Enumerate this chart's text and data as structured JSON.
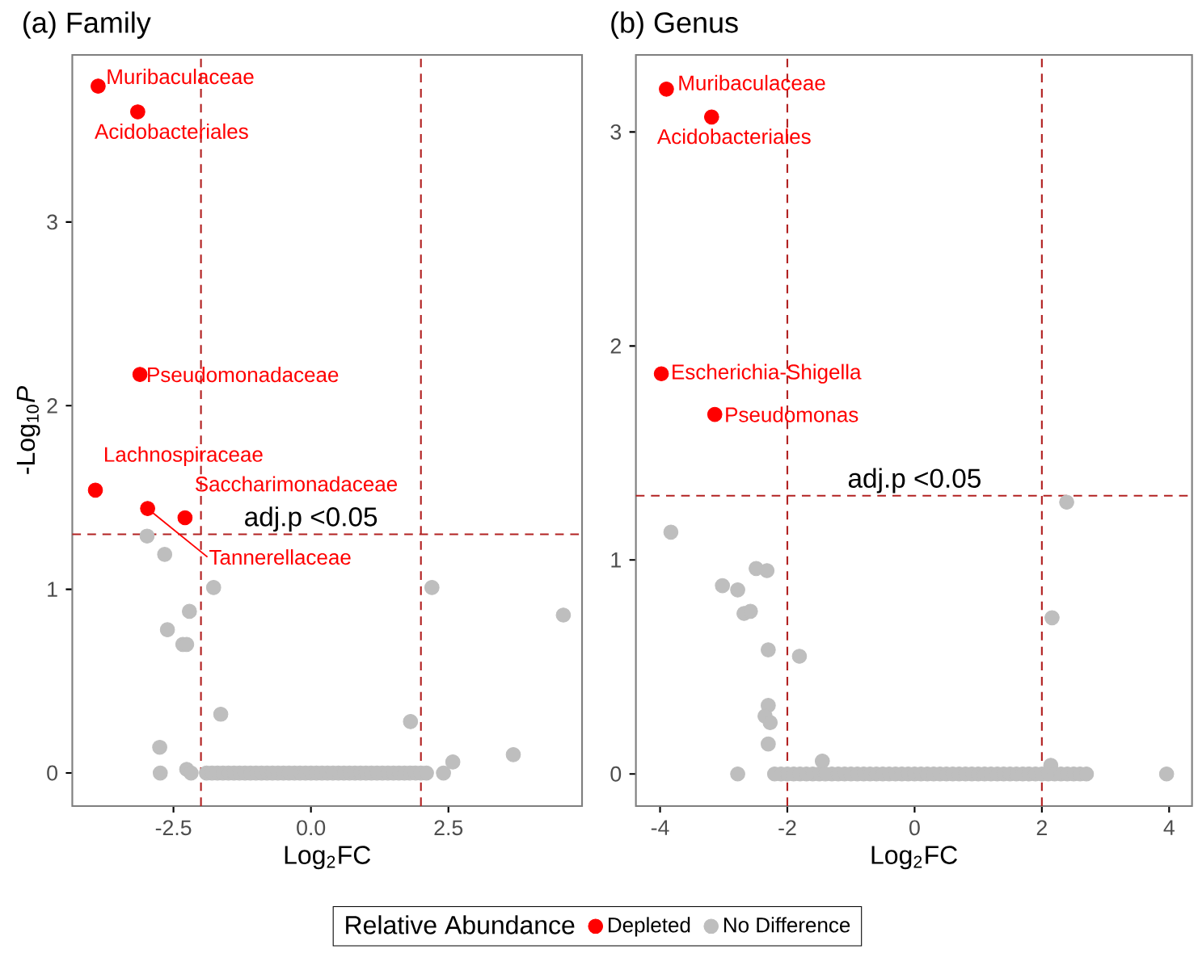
{
  "chart_data": [
    {
      "type": "scatter",
      "title": "(a) Family",
      "xlabel": "Log$_{2}$FC",
      "ylabel": "-Log$_{10}$*P*",
      "legend_title": "Relative Abundance",
      "legend": "bottom",
      "grid": false,
      "xlim": [
        -4.34,
        4.93
      ],
      "ylim": [
        -0.18,
        3.91
      ],
      "xticks": [
        -2.5,
        {
          "value": 0,
          "label": "0.0"
        },
        2.5
      ],
      "yticks": [
        0,
        1,
        2,
        3
      ],
      "series": [
        {
          "name": "Depleted",
          "color": "#ff0000",
          "x": [
            -3.87,
            -3.15,
            -3.11,
            -3.92,
            -2.97,
            -2.29
          ],
          "values": [
            3.74,
            3.6,
            2.17,
            1.54,
            1.44,
            1.39
          ]
        },
        {
          "name": "No Difference",
          "color": "#bebebe",
          "x": [
            -2.98,
            -2.66,
            -1.77,
            2.2,
            -2.21,
            4.59,
            -2.61,
            -2.33,
            -2.26,
            -1.64,
            1.81,
            -2.75,
            3.68,
            2.58,
            2.41,
            -2.74,
            -2.26,
            -2.18,
            -1.9,
            -1.8,
            -1.7,
            -1.6,
            -1.5,
            -1.4,
            -1.3,
            -1.2,
            -1.1,
            -1,
            -0.9,
            -0.8,
            -0.7,
            -0.6,
            -0.5,
            -0.4,
            -0.3,
            -0.2,
            -0.1,
            0,
            0.1,
            0.2,
            0.3,
            0.4,
            0.5,
            0.6,
            0.7,
            0.8,
            0.9,
            1,
            1.1,
            1.2,
            1.3,
            1.4,
            1.5,
            1.6,
            1.7,
            1.8,
            1.9,
            2,
            2.1
          ],
          "values": [
            1.29,
            1.19,
            1.01,
            1.01,
            0.88,
            0.86,
            0.78,
            0.7,
            0.7,
            0.32,
            0.28,
            0.14,
            0.1,
            0.06,
            0,
            0,
            0.02,
            0,
            0,
            0,
            0,
            0,
            0,
            0,
            0,
            0,
            0,
            0,
            0,
            0,
            0,
            0,
            0,
            0,
            0,
            0,
            0,
            0,
            0,
            0,
            0,
            0,
            0,
            0,
            0,
            0,
            0,
            0,
            0,
            0,
            0,
            0,
            0,
            0,
            0,
            0,
            0,
            0,
            0
          ]
        }
      ],
      "ref_lines": [
        {
          "axis": "x",
          "value": -2,
          "color": "#b22222",
          "line_style": "dashed"
        },
        {
          "axis": "x",
          "value": 2,
          "color": "#b22222",
          "line_style": "dashed"
        },
        {
          "axis": "y",
          "value": 1.3,
          "label": "adj.p <0.05",
          "color": "#b22222",
          "line_style": "dashed"
        }
      ],
      "annotations": [
        {
          "text": "Muribaculaceae",
          "x": -3.87,
          "y": 3.74
        },
        {
          "text": "Acidobacteriales",
          "x": -3.15,
          "y": 3.6
        },
        {
          "text": "Pseudomonadaceae",
          "x": -3.11,
          "y": 2.17
        },
        {
          "text": "Lachnospiraceae",
          "x": -3.92,
          "y": 1.54
        },
        {
          "text": "Tannerellaceae",
          "x": -2.97,
          "y": 1.44
        },
        {
          "text": "Saccharimonadaceae",
          "x": -2.29,
          "y": 1.39
        }
      ]
    },
    {
      "type": "scatter",
      "title": "(b) Genus",
      "xlabel": "Log$_{2}$FC",
      "grid": false,
      "xlim": [
        -4.38,
        4.36
      ],
      "ylim": [
        -0.15,
        3.36
      ],
      "xticks": [
        -4,
        -2,
        0,
        2,
        4
      ],
      "yticks": [
        0,
        1,
        2,
        3
      ],
      "series": [
        {
          "color": "#ff0000",
          "x": [
            -3.9,
            -3.19,
            -3.98,
            -3.14
          ],
          "values": [
            3.2,
            3.07,
            1.87,
            1.68
          ]
        },
        {
          "color": "#bebebe",
          "x": [
            -3.83,
            2.39,
            -2.49,
            -2.32,
            -3.02,
            -2.78,
            -2.68,
            -2.58,
            2.16,
            -2.3,
            -1.81,
            -2.3,
            -2.35,
            -2.27,
            -2.3,
            -1.45,
            2.14,
            -2.78,
            3.96,
            -2.2,
            -2.1,
            -2,
            -1.9,
            -1.8,
            -1.7,
            -1.6,
            -1.5,
            -1.4,
            -1.3,
            -1.2,
            -1.1,
            -1,
            -0.9,
            -0.8,
            -0.7,
            -0.6,
            -0.5,
            -0.4,
            -0.3,
            -0.2,
            -0.1,
            0,
            0.1,
            0.2,
            0.3,
            0.4,
            0.5,
            0.6,
            0.7,
            0.8,
            0.9,
            1,
            1.1,
            1.2,
            1.3,
            1.4,
            1.5,
            1.6,
            1.7,
            1.8,
            1.9,
            2,
            2.1,
            2.2,
            2.3,
            2.4,
            2.5,
            2.6,
            2.7
          ],
          "values": [
            1.13,
            1.27,
            0.96,
            0.95,
            0.88,
            0.86,
            0.75,
            0.76,
            0.73,
            0.58,
            0.55,
            0.32,
            0.27,
            0.24,
            0.14,
            0.06,
            0.04,
            0,
            0,
            0,
            0,
            0,
            0,
            0,
            0,
            0,
            0,
            0,
            0,
            0,
            0,
            0,
            0,
            0,
            0,
            0,
            0,
            0,
            0,
            0,
            0,
            0,
            0,
            0,
            0,
            0,
            0,
            0,
            0,
            0,
            0,
            0,
            0,
            0,
            0,
            0,
            0,
            0,
            0,
            0,
            0,
            0,
            0,
            0,
            0,
            0,
            0,
            0,
            0
          ]
        }
      ],
      "ref_lines": [
        {
          "axis": "x",
          "value": -2,
          "color": "#b22222",
          "line_style": "dashed"
        },
        {
          "axis": "x",
          "value": 2,
          "color": "#b22222",
          "line_style": "dashed"
        },
        {
          "axis": "y",
          "value": 1.3,
          "label": "adj.p <0.05",
          "color": "#b22222",
          "line_style": "dashed"
        }
      ],
      "annotations": [
        {
          "text": "Muribaculaceae",
          "x": -3.9,
          "y": 3.2
        },
        {
          "text": "Acidobacteriales",
          "x": -3.19,
          "y": 3.07
        },
        {
          "text": "Escherichia-Shigella",
          "x": -3.98,
          "y": 1.87
        },
        {
          "text": "Pseudomonas",
          "x": -3.14,
          "y": 1.68
        }
      ]
    }
  ]
}
